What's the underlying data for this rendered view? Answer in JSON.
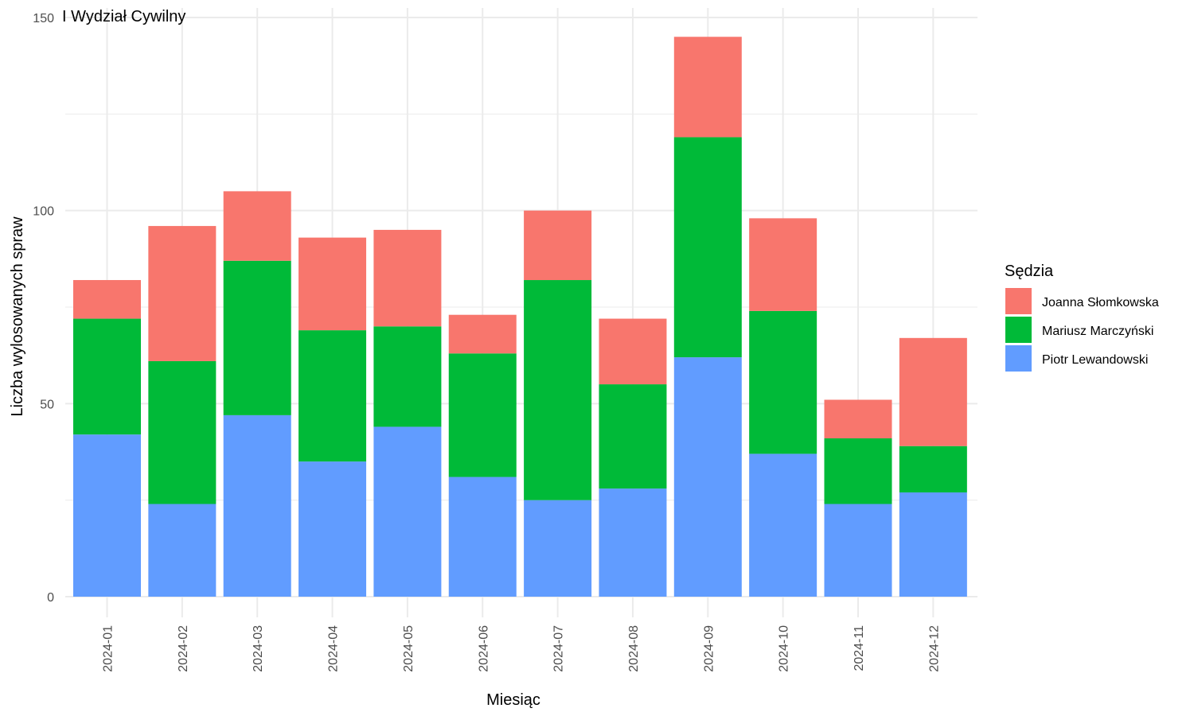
{
  "chart_data": {
    "type": "bar",
    "stacked": true,
    "title": "I Wydział Cywilny",
    "xlabel": "Miesiąc",
    "ylabel": "Liczba wylosowanych spraw",
    "ylim": [
      0,
      150
    ],
    "yticks": [
      0,
      50,
      100,
      150
    ],
    "grid": true,
    "legend_title": "Sędzia",
    "legend_position": "right",
    "categories": [
      "2024-01",
      "2024-02",
      "2024-03",
      "2024-04",
      "2024-05",
      "2024-06",
      "2024-07",
      "2024-08",
      "2024-09",
      "2024-10",
      "2024-11",
      "2024-12"
    ],
    "series": [
      {
        "name": "Piotr Lewandowski",
        "color": "#619CFF",
        "values": [
          42,
          24,
          47,
          35,
          44,
          31,
          25,
          28,
          62,
          37,
          24,
          27
        ]
      },
      {
        "name": "Mariusz Marczyński",
        "color": "#00BA38",
        "values": [
          30,
          37,
          40,
          34,
          26,
          32,
          57,
          27,
          57,
          37,
          17,
          12
        ]
      },
      {
        "name": "Joanna Słomkowska",
        "color": "#F8766D",
        "values": [
          10,
          35,
          18,
          24,
          25,
          10,
          18,
          17,
          26,
          24,
          10,
          28
        ]
      }
    ],
    "legend_order": [
      "Joanna Słomkowska",
      "Mariusz Marczyński",
      "Piotr Lewandowski"
    ]
  }
}
